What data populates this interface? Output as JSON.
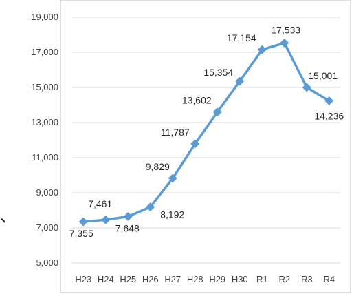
{
  "chart_data": {
    "type": "line",
    "categories": [
      "H23",
      "H24",
      "H25",
      "H26",
      "H27",
      "H28",
      "H29",
      "H30",
      "R1",
      "R2",
      "R3",
      "R4"
    ],
    "series": [
      {
        "values": [
          7355,
          7461,
          7648,
          8192,
          9829,
          11787,
          13602,
          15354,
          17154,
          17533,
          15001,
          14236
        ],
        "data_labels": [
          "7,355",
          "7,461",
          "7,648",
          "8,192",
          "9,829",
          "11,787",
          "13,602",
          "15,354",
          "17,154",
          "17,533",
          "15,001",
          "14,236"
        ],
        "color": "#5b9bd5",
        "marker": "diamond"
      }
    ],
    "y_ticks": [
      5000,
      7000,
      9000,
      11000,
      13000,
      15000,
      17000,
      19000
    ],
    "y_tick_labels": [
      "5,000",
      "7,000",
      "9,000",
      "11,000",
      "13,000",
      "15,000",
      "17,000",
      "19,000"
    ],
    "ylim": [
      5000,
      19000
    ],
    "title": "",
    "xlabel": "",
    "ylabel": "",
    "grid": true,
    "legend": "none"
  },
  "fragment_text": "、",
  "colors": {
    "line": "#5b9bd5",
    "grid": "#d9d9d9",
    "frame": "#bfbfbf",
    "text": "#404040"
  }
}
